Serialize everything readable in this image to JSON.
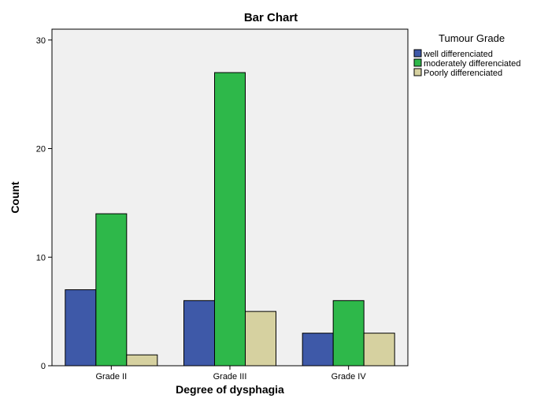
{
  "chart_data": {
    "type": "bar",
    "title": "Bar Chart",
    "xlabel": "Degree of dysphagia",
    "ylabel": "Count",
    "categories": [
      "Grade II",
      "Grade III",
      "Grade IV"
    ],
    "ylim": [
      0,
      31
    ],
    "yticks": [
      0,
      10,
      20,
      30
    ],
    "grid": false,
    "legend_title": "Tumour Grade",
    "legend_position": "right",
    "series": [
      {
        "name": "well differenciated",
        "color": "#3e59a8",
        "values": [
          7,
          6,
          3
        ]
      },
      {
        "name": "moderately differenciated",
        "color": "#2eb84a",
        "values": [
          14,
          27,
          6
        ]
      },
      {
        "name": "Poorly differenciated",
        "color": "#d6d1a0",
        "values": [
          1,
          5,
          3
        ]
      }
    ],
    "colors": {
      "plot_background": "#f0f0f0"
    }
  }
}
